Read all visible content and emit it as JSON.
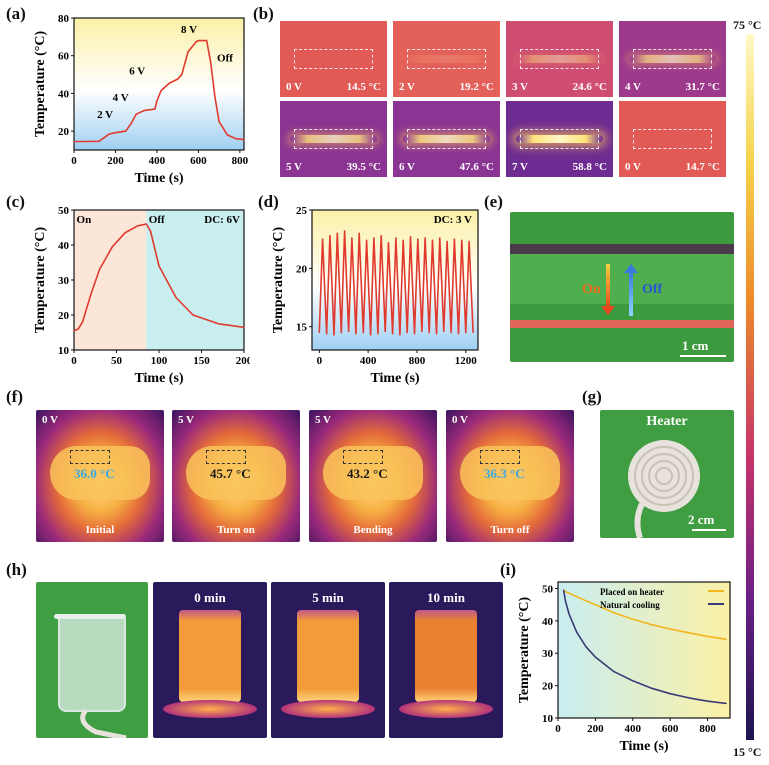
{
  "panels": {
    "a": "(a)",
    "b": "(b)",
    "c": "(c)",
    "d": "(d)",
    "e": "(e)",
    "f": "(f)",
    "g": "(g)",
    "h": "(h)",
    "i": "(i)"
  },
  "colorbar": {
    "top": "75 °C",
    "bottom": "15 °C",
    "colors": [
      "#fff8c9",
      "#f6d44a",
      "#ee8a2a",
      "#c7336a",
      "#6a1f86",
      "#1c1550"
    ]
  },
  "chart_data": [
    {
      "id": "a",
      "type": "line",
      "xlabel": "Time (s)",
      "ylabel": "Temperature (°C)",
      "xlim": [
        0,
        820
      ],
      "ylim": [
        10,
        80
      ],
      "xticks": [
        0,
        200,
        400,
        600,
        800
      ],
      "yticks": [
        20,
        40,
        60,
        80
      ],
      "x": [
        0,
        60,
        120,
        145,
        170,
        200,
        250,
        275,
        300,
        340,
        390,
        400,
        420,
        460,
        500,
        520,
        550,
        590,
        600,
        615,
        640,
        660,
        680,
        700,
        740,
        780,
        820
      ],
      "y": [
        14.5,
        14.5,
        14.6,
        16.5,
        18.5,
        19.2,
        20,
        24,
        29,
        31,
        31.7,
        36,
        41.5,
        45.5,
        47.6,
        50,
        62,
        67.5,
        68,
        68,
        68,
        56,
        38,
        25,
        18,
        16,
        15.5
      ],
      "annotations": [
        "2 V",
        "4 V",
        "6 V",
        "8 V",
        "Off"
      ],
      "line_color": "#e03a2e"
    },
    {
      "id": "c",
      "type": "line",
      "xlabel": "Time (s)",
      "ylabel": "Temperature (°C)",
      "xlim": [
        0,
        200
      ],
      "ylim": [
        10,
        50
      ],
      "xticks": [
        0,
        50,
        100,
        150,
        200
      ],
      "yticks": [
        10,
        20,
        30,
        40,
        50
      ],
      "x": [
        0,
        5,
        10,
        20,
        30,
        45,
        60,
        75,
        85,
        90,
        100,
        120,
        140,
        170,
        200
      ],
      "y": [
        15.5,
        16,
        18,
        26,
        33,
        39.5,
        43.5,
        45.5,
        46,
        44,
        34,
        25,
        20,
        17.5,
        16.5
      ],
      "regions": [
        {
          "label": "On",
          "x": [
            0,
            85
          ]
        },
        {
          "label": "Off",
          "x": [
            85,
            200
          ]
        }
      ],
      "annotation": "DC: 6V",
      "line_color": "#e03a2e"
    },
    {
      "id": "d",
      "type": "line",
      "xlabel": "Time (s)",
      "ylabel": "Temperature (°C)",
      "xlim": [
        -60,
        1300
      ],
      "ylim": [
        13,
        25
      ],
      "xticks": [
        0,
        400,
        800,
        1200
      ],
      "yticks": [
        15,
        20,
        25
      ],
      "cycles": 21,
      "period_s": 60,
      "max_temp": [
        22.5,
        22.8,
        23,
        23.2,
        22.6,
        23,
        22.4,
        22.6,
        22.8,
        22.2,
        22.6,
        22.4,
        22.7,
        22.5,
        22.6,
        22.4,
        22.6,
        22.3,
        22.5,
        22.4,
        22.3
      ],
      "min_temp": [
        14.5,
        14.4,
        14.3,
        14.5,
        14.6,
        14.4,
        14.5,
        14.3,
        14.4,
        14.6,
        14.4,
        14.3,
        14.5,
        14.4,
        14.6,
        14.5,
        14.4,
        14.6,
        14.5,
        14.4,
        14.5
      ],
      "annotation": "DC: 3 V",
      "line_color": "#e03a2e"
    },
    {
      "id": "i",
      "type": "line",
      "xlabel": "Time (s)",
      "ylabel": "Temperature (°C)",
      "xlim": [
        0,
        920
      ],
      "ylim": [
        10,
        52
      ],
      "xticks": [
        0,
        200,
        400,
        600,
        800
      ],
      "yticks": [
        10,
        20,
        30,
        40,
        50
      ],
      "series": [
        {
          "name": "Placed on heater",
          "color": "#f2b51c",
          "x": [
            30,
            40,
            60,
            100,
            150,
            200,
            300,
            400,
            500,
            600,
            700,
            800,
            900
          ],
          "y": [
            49.5,
            49,
            48.5,
            47.5,
            46.2,
            45,
            42.5,
            40.5,
            38.8,
            37.5,
            36.3,
            35.2,
            34.3
          ]
        },
        {
          "name": "Natural cooling",
          "color": "#3a3a78",
          "x": [
            30,
            40,
            60,
            100,
            150,
            200,
            300,
            400,
            500,
            600,
            700,
            800,
            900
          ],
          "y": [
            49.5,
            46,
            42,
            36.5,
            32,
            28.8,
            24.3,
            21.5,
            19.2,
            17.5,
            16.2,
            15.2,
            14.5
          ]
        }
      ]
    }
  ],
  "thermal_b": [
    {
      "voltage": "0 V",
      "temp": "14.5 °C",
      "bg": "#e15a56",
      "glow": 0
    },
    {
      "voltage": "2 V",
      "temp": "19.2 °C",
      "bg": "#e4605a",
      "glow": 0.15
    },
    {
      "voltage": "3 V",
      "temp": "24.6 °C",
      "bg": "#cf4d71",
      "glow": 0.45
    },
    {
      "voltage": "4 V",
      "temp": "31.7 °C",
      "bg": "#9e3a8c",
      "glow": 0.7
    },
    {
      "voltage": "5 V",
      "temp": "39.5 °C",
      "bg": "#8b3492",
      "glow": 0.8
    },
    {
      "voltage": "6 V",
      "temp": "47.6 °C",
      "bg": "#8a3493",
      "glow": 0.85
    },
    {
      "voltage": "7 V",
      "temp": "58.8 °C",
      "bg": "#6e2b92",
      "glow": 1
    },
    {
      "voltage": "0 V",
      "temp": "14.7 °C",
      "bg": "#e15a56",
      "glow": 0
    }
  ],
  "panel_e": {
    "on": "On",
    "off": "Off",
    "scale": "1 cm"
  },
  "thermal_f": [
    {
      "voltage": "0 V",
      "temp": "36.0 °C",
      "caption": "Initial",
      "temp_color": "#3aa9e6"
    },
    {
      "voltage": "5 V",
      "temp": "45.7 °C",
      "caption": "Turn on",
      "temp_color": "#1a1a1a"
    },
    {
      "voltage": "5 V",
      "temp": "43.2 °C",
      "caption": "Bending",
      "temp_color": "#1a1a1a"
    },
    {
      "voltage": "0 V",
      "temp": "36.3 °C",
      "caption": "Turn off",
      "temp_color": "#3aa9e6"
    }
  ],
  "panel_g": {
    "title": "Heater",
    "scale": "2 cm"
  },
  "thermal_h": [
    {
      "time": "0 min"
    },
    {
      "time": "5 min"
    },
    {
      "time": "10 min"
    }
  ]
}
